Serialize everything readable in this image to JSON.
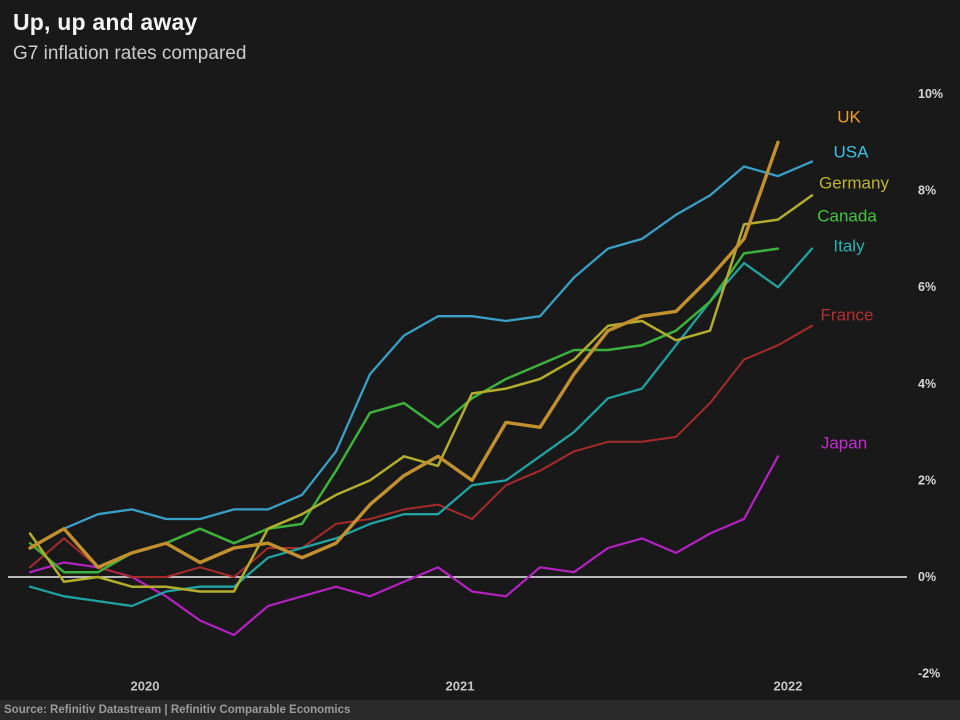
{
  "header": {
    "title": "Up, up and away",
    "subtitle": "G7 inflation rates compared"
  },
  "source_bar": {
    "text": "Source: Refinitiv Datastream | Refinitiv Comparable Economics"
  },
  "colors": {
    "background": "#191919",
    "source_bar_background": "#2a2a2a",
    "zero_line": "#eeeeee",
    "axis_text": "#d6d6d6",
    "year_text": "#c4c4c4"
  },
  "chart_data": {
    "type": "line",
    "title": "Up, up and away",
    "subtitle": "G7 inflation rates compared",
    "unit": "% year-on-year inflation",
    "grid": "off",
    "legend_position": "right-of-line-ends",
    "ylim": [
      -2,
      10
    ],
    "yticks": [
      {
        "value": 10,
        "label": "10%"
      },
      {
        "value": 8,
        "label": "8%"
      },
      {
        "value": 6,
        "label": "6%"
      },
      {
        "value": 4,
        "label": "4%"
      },
      {
        "value": 2,
        "label": "2%"
      },
      {
        "value": 0,
        "label": "0%"
      },
      {
        "value": -2,
        "label": "-2%"
      }
    ],
    "x_labels": [
      "2020",
      "2021",
      "2022"
    ],
    "months": [
      "2020-06",
      "2020-07",
      "2020-08",
      "2020-09",
      "2020-10",
      "2020-11",
      "2020-12",
      "2021-01",
      "2021-02",
      "2021-03",
      "2021-04",
      "2021-05",
      "2021-06",
      "2021-07",
      "2021-08",
      "2021-09",
      "2021-10",
      "2021-11",
      "2021-12",
      "2022-01",
      "2022-02",
      "2022-03",
      "2022-04",
      "2022-05"
    ],
    "series": [
      {
        "name": "Japan",
        "color": "#b621c4",
        "label_color": "#c32bd1",
        "width": 2.2,
        "values": [
          0.1,
          0.3,
          0.2,
          0.0,
          -0.4,
          -0.9,
          -1.2,
          -0.6,
          -0.4,
          -0.2,
          -0.4,
          -0.1,
          0.2,
          -0.3,
          -0.4,
          0.2,
          0.1,
          0.6,
          0.8,
          0.5,
          0.9,
          1.2,
          2.5,
          null
        ]
      },
      {
        "name": "France",
        "color": "#a82b2b",
        "label_color": "#b73030",
        "width": 2.0,
        "values": [
          0.2,
          0.8,
          0.2,
          0.0,
          0.0,
          0.2,
          0.0,
          0.6,
          0.6,
          1.1,
          1.2,
          1.4,
          1.5,
          1.2,
          1.9,
          2.2,
          2.6,
          2.8,
          2.8,
          2.9,
          3.6,
          4.5,
          4.8,
          5.2
        ]
      },
      {
        "name": "Italy",
        "color": "#1fa3a3",
        "label_color": "#27b3b3",
        "width": 2.3,
        "values": [
          -0.2,
          -0.4,
          -0.5,
          -0.6,
          -0.3,
          -0.2,
          -0.2,
          0.4,
          0.6,
          0.8,
          1.1,
          1.3,
          1.3,
          1.9,
          2.0,
          2.5,
          3.0,
          3.7,
          3.9,
          4.8,
          5.7,
          6.5,
          6.0,
          6.8
        ]
      },
      {
        "name": "Canada",
        "color": "#3cb23c",
        "label_color": "#46c23e",
        "width": 2.5,
        "values": [
          0.7,
          0.1,
          0.1,
          0.5,
          0.7,
          1.0,
          0.7,
          1.0,
          1.1,
          2.2,
          3.4,
          3.6,
          3.1,
          3.7,
          4.1,
          4.4,
          4.7,
          4.7,
          4.8,
          5.1,
          5.7,
          6.7,
          6.8,
          null
        ]
      },
      {
        "name": "Germany",
        "color": "#b3ad2c",
        "label_color": "#bdb52a",
        "width": 2.5,
        "values": [
          0.9,
          -0.1,
          0.0,
          -0.2,
          -0.2,
          -0.3,
          -0.3,
          1.0,
          1.3,
          1.7,
          2.0,
          2.5,
          2.3,
          3.8,
          3.9,
          4.1,
          4.5,
          5.2,
          5.3,
          4.9,
          5.1,
          7.3,
          7.4,
          7.9
        ]
      },
      {
        "name": "USA",
        "color": "#3a9fc6",
        "label_color": "#38c6e6",
        "width": 2.3,
        "values": [
          0.6,
          1.0,
          1.3,
          1.4,
          1.2,
          1.2,
          1.4,
          1.4,
          1.7,
          2.6,
          4.2,
          5.0,
          5.4,
          5.4,
          5.3,
          5.4,
          6.2,
          6.8,
          7.0,
          7.5,
          7.9,
          8.5,
          8.3,
          8.6
        ]
      },
      {
        "name": "UK",
        "color": "#c3902f",
        "label_color": "#f3a01f",
        "width": 3.4,
        "values": [
          0.6,
          1.0,
          0.2,
          0.5,
          0.7,
          0.3,
          0.6,
          0.7,
          0.4,
          0.7,
          1.5,
          2.1,
          2.5,
          2.0,
          3.2,
          3.1,
          4.2,
          5.1,
          5.4,
          5.5,
          6.2,
          7.0,
          9.0,
          null
        ]
      }
    ]
  }
}
